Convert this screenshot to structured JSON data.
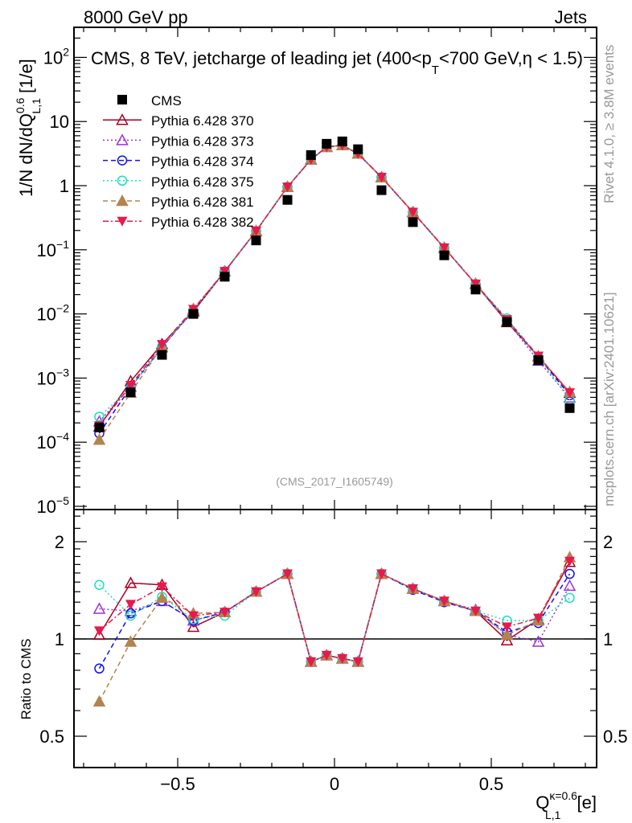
{
  "header": {
    "left": "8000 GeV pp",
    "right": "Jets"
  },
  "side_text": {
    "rivet": "Rivet 4.1.0, ≥ 3.8M events",
    "mcplots": "mcplots.cern.ch [arXiv:2401.10621]"
  },
  "watermark": "(CMS_2017_I1605749)",
  "chart_data": {
    "type": "line",
    "title": {
      "pre": "CMS, 8 TeV, jetcharge of leading jet (400<p",
      "sub": "T",
      "post": "<700 GeV,η < 1.5)"
    },
    "ylabel": {
      "main": "1/N dN/dQ",
      "sup": "0.6",
      "sub": "L,1",
      "unit": " [1/e]"
    },
    "xlabel": {
      "main": "Q",
      "sup": "κ=0.6",
      "sub": "L,1",
      "unit": " [e]"
    },
    "ratio_ylabel": "Ratio to CMS",
    "xlim": [
      -0.83,
      0.835
    ],
    "ylim": [
      1e-05,
      300
    ],
    "ratio_ylim": [
      0.4,
      2.5
    ],
    "yscale": "log",
    "x_ticks": [
      {
        "v": -0.5,
        "label": "−0.5"
      },
      {
        "v": 0,
        "label": "0"
      },
      {
        "v": 0.5,
        "label": "0.5"
      }
    ],
    "y_ticks": [
      {
        "v": 100,
        "label": "10",
        "exp": "2"
      },
      {
        "v": 10,
        "label": "10"
      },
      {
        "v": 1,
        "label": "1"
      },
      {
        "v": 0.1,
        "label": "10",
        "exp": "−1"
      },
      {
        "v": 0.01,
        "label": "10",
        "exp": "−2"
      },
      {
        "v": 0.001,
        "label": "10",
        "exp": "−3"
      },
      {
        "v": 0.0001,
        "label": "10",
        "exp": "−4"
      },
      {
        "v": 1e-05,
        "label": "10",
        "exp": "−5"
      }
    ],
    "ratio_ticks": [
      {
        "v": 2,
        "label": "2"
      },
      {
        "v": 1,
        "label": "1"
      },
      {
        "v": 0.5,
        "label": "0.5"
      }
    ],
    "x": [
      -0.75,
      -0.65,
      -0.55,
      -0.45,
      -0.35,
      -0.25,
      -0.15,
      -0.075,
      -0.025,
      0.025,
      0.075,
      0.15,
      0.25,
      0.35,
      0.45,
      0.55,
      0.65,
      0.75
    ],
    "data": {
      "name": "CMS",
      "color": "#000000",
      "values": [
        0.00017,
        0.0006,
        0.0023,
        0.01,
        0.038,
        0.14,
        0.6,
        3.0,
        4.5,
        4.9,
        3.7,
        0.85,
        0.27,
        0.082,
        0.024,
        0.0075,
        0.0019,
        0.00034
      ]
    },
    "legend_position": "top-left",
    "series": [
      {
        "name": "Pythia 6.428 370",
        "color": "#a50021",
        "dash": "",
        "marker": "triangle-open",
        "ratio": [
          1.03,
          1.49,
          1.47,
          1.09,
          1.21,
          1.4,
          1.59,
          0.85,
          0.89,
          0.87,
          0.85,
          1.59,
          1.43,
          1.31,
          1.22,
          0.99,
          1.15,
          1.73
        ]
      },
      {
        "name": "Pythia 6.428 373",
        "color": "#9b30d9",
        "dash": "2,3",
        "marker": "triangle-open",
        "ratio": [
          1.24,
          1.22,
          1.31,
          1.14,
          1.21,
          1.4,
          1.59,
          0.85,
          0.89,
          0.87,
          0.85,
          1.59,
          1.43,
          1.31,
          1.23,
          1.03,
          0.98,
          1.46
        ]
      },
      {
        "name": "Pythia 6.428 374",
        "color": "#1010ee",
        "dash": "6,4",
        "marker": "circle-open",
        "ratio": [
          0.81,
          1.2,
          1.31,
          1.14,
          1.21,
          1.4,
          1.59,
          0.85,
          0.89,
          0.87,
          0.85,
          1.59,
          1.42,
          1.3,
          1.22,
          1.05,
          1.12,
          1.59
        ]
      },
      {
        "name": "Pythia 6.428 375",
        "color": "#19e0c0",
        "dash": "2,3",
        "marker": "circle-open",
        "ratio": [
          1.47,
          1.18,
          1.35,
          1.15,
          1.18,
          1.4,
          1.59,
          0.85,
          0.89,
          0.87,
          0.85,
          1.59,
          1.43,
          1.31,
          1.22,
          1.14,
          1.14,
          1.34
        ]
      },
      {
        "name": "Pythia 6.428 381",
        "color": "#b5834f",
        "dash": "6,4",
        "marker": "triangle-filled",
        "ratio": [
          0.64,
          0.98,
          1.34,
          1.2,
          1.21,
          1.4,
          1.59,
          0.85,
          0.89,
          0.87,
          0.85,
          1.59,
          1.43,
          1.31,
          1.22,
          1.03,
          1.14,
          1.79
        ]
      },
      {
        "name": "Pythia 6.428 382",
        "color": "#e8194b",
        "dash": "7,3,2,3",
        "marker": "triangle-down-filled",
        "ratio": [
          1.06,
          1.28,
          1.45,
          1.18,
          1.21,
          1.4,
          1.59,
          0.85,
          0.89,
          0.87,
          0.85,
          1.59,
          1.43,
          1.31,
          1.22,
          1.09,
          1.16,
          1.74
        ]
      }
    ]
  }
}
